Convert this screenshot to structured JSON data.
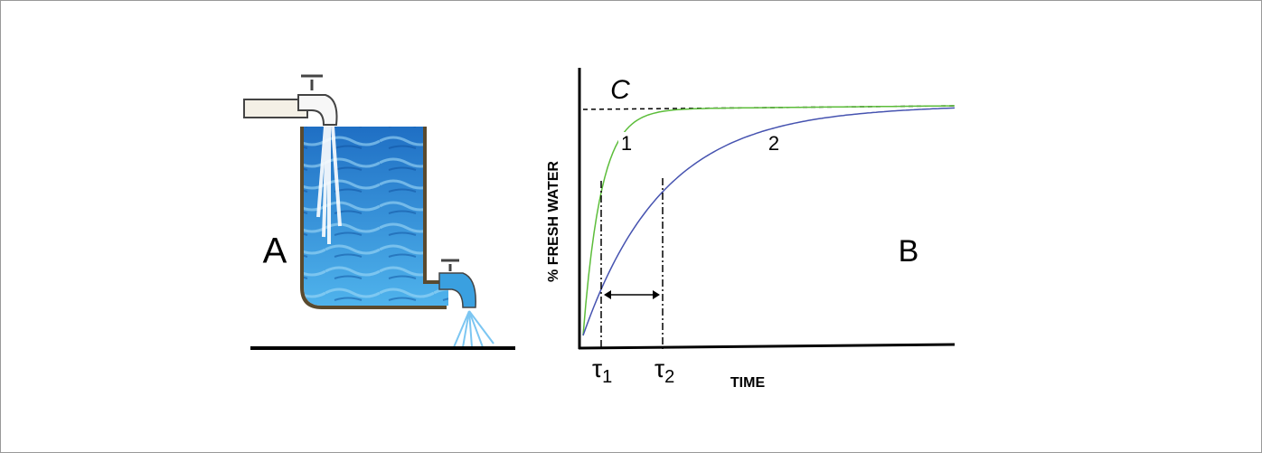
{
  "panel_a": {
    "label": "A"
  },
  "panel_b": {
    "label": "B",
    "asymptote_label": "C",
    "curves": [
      {
        "label": "1"
      },
      {
        "label": "2"
      }
    ],
    "y_axis_label": "% FRESH WATER",
    "x_axis_label": "TIME",
    "time_constants": [
      {
        "symbol": "τ",
        "subscript": "1"
      },
      {
        "symbol": "τ",
        "subscript": "2"
      }
    ]
  }
}
